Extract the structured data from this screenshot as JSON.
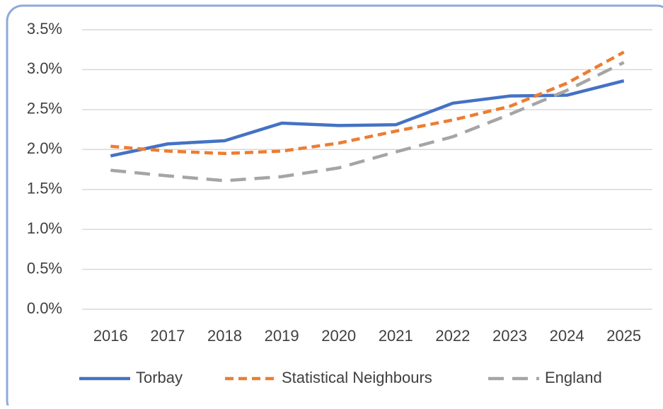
{
  "chart_data": {
    "type": "line",
    "categories": [
      "2016",
      "2017",
      "2018",
      "2019",
      "2020",
      "2021",
      "2022",
      "2023",
      "2024",
      "2025"
    ],
    "series": [
      {
        "name": "Torbay",
        "color": "#4472c4",
        "values": [
          1.92,
          2.07,
          2.11,
          2.33,
          2.3,
          2.31,
          2.58,
          2.67,
          2.68,
          2.86
        ]
      },
      {
        "name": "Statistical Neighbours",
        "color": "#ed7d31",
        "values": [
          2.04,
          1.98,
          1.95,
          1.98,
          2.08,
          2.23,
          2.37,
          2.54,
          2.83,
          3.22
        ]
      },
      {
        "name": "England",
        "color": "#a5a5a5",
        "values": [
          1.74,
          1.67,
          1.61,
          1.66,
          1.77,
          1.97,
          2.16,
          2.44,
          2.74,
          3.09
        ]
      }
    ],
    "ylim": [
      0,
      3.5
    ],
    "yticks": [
      {
        "value": 0,
        "label": "0.0%"
      },
      {
        "value": 0.5,
        "label": "0.5%"
      },
      {
        "value": 1,
        "label": "1.0%"
      },
      {
        "value": 1.5,
        "label": "1.5%"
      },
      {
        "value": 2,
        "label": "2.0%"
      },
      {
        "value": 2.5,
        "label": "2.5%"
      },
      {
        "value": 3,
        "label": "3.0%"
      },
      {
        "value": 3.5,
        "label": "3.5%"
      }
    ],
    "grid": true,
    "legend": "bottom"
  }
}
